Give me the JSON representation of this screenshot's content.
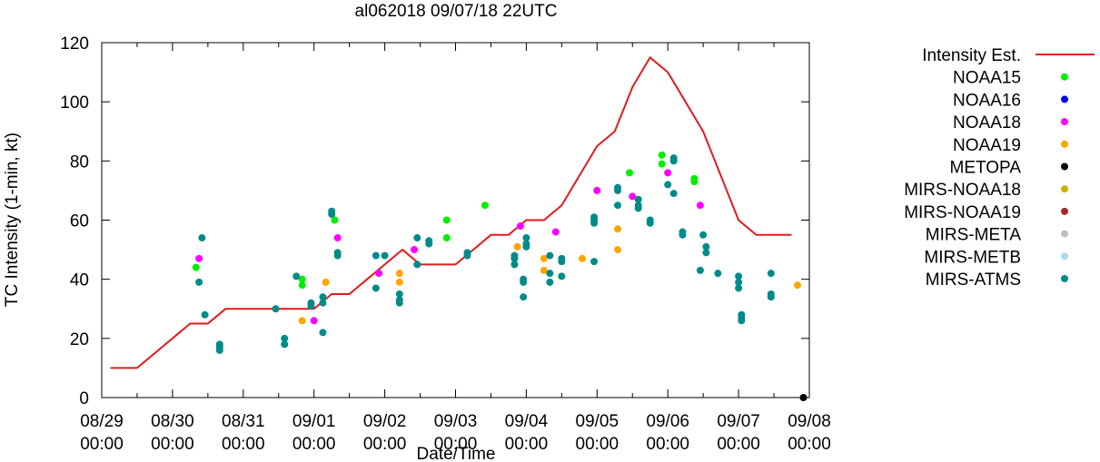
{
  "chart_data": {
    "type": "scatter",
    "title": "al062018 09/07/18 22UTC",
    "xlabel": "Date/Time",
    "ylabel": "TC Intensity (1-min, kt)",
    "xlim": [
      "08/29 00:00",
      "09/08 00:00"
    ],
    "ylim": [
      0,
      120
    ],
    "grid": false,
    "legend_position": "right, outside plot",
    "x_ticks": [
      {
        "date": "08/29",
        "time": "00:00"
      },
      {
        "date": "08/30",
        "time": "00:00"
      },
      {
        "date": "08/31",
        "time": "00:00"
      },
      {
        "date": "09/01",
        "time": "00:00"
      },
      {
        "date": "09/02",
        "time": "00:00"
      },
      {
        "date": "09/03",
        "time": "00:00"
      },
      {
        "date": "09/04",
        "time": "00:00"
      },
      {
        "date": "09/05",
        "time": "00:00"
      },
      {
        "date": "09/06",
        "time": "00:00"
      },
      {
        "date": "09/07",
        "time": "00:00"
      },
      {
        "date": "09/08",
        "time": "00:00"
      }
    ],
    "y_ticks": [
      0,
      20,
      40,
      60,
      80,
      100,
      120
    ],
    "series": [
      {
        "name": "Intensity Est.",
        "style": "line",
        "color": "#e31a1c",
        "points": [
          [
            "08/29 03:00",
            10
          ],
          [
            "08/29 12:00",
            10
          ],
          [
            "08/30 00:00",
            20
          ],
          [
            "08/30 06:00",
            25
          ],
          [
            "08/30 12:00",
            25
          ],
          [
            "08/30 18:00",
            30
          ],
          [
            "08/31 00:00",
            30
          ],
          [
            "08/31 12:00",
            30
          ],
          [
            "09/01 00:00",
            30
          ],
          [
            "09/01 06:00",
            35
          ],
          [
            "09/01 12:00",
            35
          ],
          [
            "09/01 18:00",
            40
          ],
          [
            "09/02 00:00",
            45
          ],
          [
            "09/02 06:00",
            50
          ],
          [
            "09/02 12:00",
            45
          ],
          [
            "09/02 18:00",
            45
          ],
          [
            "09/03 00:00",
            45
          ],
          [
            "09/03 06:00",
            50
          ],
          [
            "09/03 12:00",
            55
          ],
          [
            "09/03 18:00",
            55
          ],
          [
            "09/04 00:00",
            60
          ],
          [
            "09/04 06:00",
            60
          ],
          [
            "09/04 12:00",
            65
          ],
          [
            "09/04 18:00",
            75
          ],
          [
            "09/05 00:00",
            85
          ],
          [
            "09/05 06:00",
            90
          ],
          [
            "09/05 12:00",
            105
          ],
          [
            "09/05 18:00",
            115
          ],
          [
            "09/06 00:00",
            110
          ],
          [
            "09/06 06:00",
            100
          ],
          [
            "09/06 12:00",
            90
          ],
          [
            "09/06 18:00",
            75
          ],
          [
            "09/07 00:00",
            60
          ],
          [
            "09/07 06:00",
            55
          ],
          [
            "09/07 12:00",
            55
          ],
          [
            "09/07 18:00",
            55
          ]
        ]
      },
      {
        "name": "NOAA15",
        "style": "points",
        "color": "#00ee00",
        "points": [
          [
            "08/30 08:00",
            44
          ],
          [
            "08/31 20:00",
            40
          ],
          [
            "08/31 20:00",
            38
          ],
          [
            "09/01 07:00",
            60
          ],
          [
            "09/02 21:00",
            60
          ],
          [
            "09/02 21:00",
            54
          ],
          [
            "09/03 10:00",
            65
          ],
          [
            "09/05 11:00",
            76
          ],
          [
            "09/05 22:00",
            82
          ],
          [
            "09/05 22:00",
            79
          ],
          [
            "09/06 09:00",
            74
          ],
          [
            "09/06 09:00",
            73
          ]
        ]
      },
      {
        "name": "NOAA16",
        "style": "points",
        "color": "#0000ee",
        "points": []
      },
      {
        "name": "NOAA18",
        "style": "points",
        "color": "#ff00ff",
        "points": [
          [
            "08/30 09:00",
            47
          ],
          [
            "09/01 00:00",
            26
          ],
          [
            "09/01 08:00",
            54
          ],
          [
            "09/01 22:00",
            42
          ],
          [
            "09/02 10:00",
            50
          ],
          [
            "09/03 22:00",
            58
          ],
          [
            "09/04 10:00",
            56
          ],
          [
            "09/05 00:00",
            70
          ],
          [
            "09/05 12:00",
            68
          ],
          [
            "09/06 00:00",
            76
          ],
          [
            "09/06 11:00",
            65
          ]
        ]
      },
      {
        "name": "NOAA19",
        "style": "points",
        "color": "#ffa500",
        "points": [
          [
            "08/31 20:00",
            26
          ],
          [
            "09/01 04:00",
            39
          ],
          [
            "09/02 05:00",
            42
          ],
          [
            "09/02 05:00",
            39
          ],
          [
            "09/03 21:00",
            51
          ],
          [
            "09/04 06:00",
            47
          ],
          [
            "09/04 06:00",
            43
          ],
          [
            "09/04 19:00",
            47
          ],
          [
            "09/05 07:00",
            57
          ],
          [
            "09/05 07:00",
            50
          ],
          [
            "09/07 20:00",
            38
          ]
        ]
      },
      {
        "name": "METOPA",
        "style": "points",
        "color": "#000000",
        "points": [
          [
            "09/07 22:00",
            0
          ]
        ]
      },
      {
        "name": "MIRS-NOAA18",
        "style": "points",
        "color": "#c8b400",
        "points": []
      },
      {
        "name": "MIRS-NOAA19",
        "style": "points",
        "color": "#a52a2a",
        "points": []
      },
      {
        "name": "MIRS-META",
        "style": "points",
        "color": "#bebebe",
        "points": []
      },
      {
        "name": "MIRS-METB",
        "style": "points",
        "color": "#add8e6",
        "points": []
      },
      {
        "name": "MIRS-ATMS",
        "style": "points",
        "color": "#008b8b",
        "points": [
          [
            "08/30 09:00",
            39
          ],
          [
            "08/30 10:00",
            54
          ],
          [
            "08/30 11:00",
            28
          ],
          [
            "08/30 16:00",
            18
          ],
          [
            "08/30 16:00",
            17
          ],
          [
            "08/30 16:00",
            16
          ],
          [
            "08/31 11:00",
            30
          ],
          [
            "08/31 14:00",
            20
          ],
          [
            "08/31 14:00",
            18
          ],
          [
            "08/31 18:00",
            41
          ],
          [
            "08/31 23:00",
            32
          ],
          [
            "08/31 23:00",
            31
          ],
          [
            "09/01 03:00",
            22
          ],
          [
            "09/01 03:00",
            32
          ],
          [
            "09/01 03:00",
            34
          ],
          [
            "09/01 06:00",
            63
          ],
          [
            "09/01 06:00",
            62
          ],
          [
            "09/01 08:00",
            48
          ],
          [
            "09/01 08:00",
            49
          ],
          [
            "09/01 21:00",
            48
          ],
          [
            "09/01 21:00",
            37
          ],
          [
            "09/02 00:00",
            48
          ],
          [
            "09/02 05:00",
            35
          ],
          [
            "09/02 05:00",
            33
          ],
          [
            "09/02 05:00",
            32
          ],
          [
            "09/02 11:00",
            54
          ],
          [
            "09/02 11:00",
            45
          ],
          [
            "09/02 15:00",
            53
          ],
          [
            "09/02 15:00",
            52
          ],
          [
            "09/03 04:00",
            49
          ],
          [
            "09/03 04:00",
            48
          ],
          [
            "09/03 20:00",
            48
          ],
          [
            "09/03 20:00",
            47
          ],
          [
            "09/03 20:00",
            45
          ],
          [
            "09/03 23:00",
            40
          ],
          [
            "09/03 23:00",
            39
          ],
          [
            "09/03 23:00",
            34
          ],
          [
            "09/04 00:00",
            54
          ],
          [
            "09/04 00:00",
            52
          ],
          [
            "09/04 00:00",
            51
          ],
          [
            "09/04 08:00",
            48
          ],
          [
            "09/04 08:00",
            42
          ],
          [
            "09/04 08:00",
            39
          ],
          [
            "09/04 12:00",
            47
          ],
          [
            "09/04 12:00",
            46
          ],
          [
            "09/04 12:00",
            41
          ],
          [
            "09/04 23:00",
            61
          ],
          [
            "09/04 23:00",
            60
          ],
          [
            "09/04 23:00",
            59
          ],
          [
            "09/04 23:00",
            46
          ],
          [
            "09/05 07:00",
            71
          ],
          [
            "09/05 07:00",
            70
          ],
          [
            "09/05 07:00",
            65
          ],
          [
            "09/05 14:00",
            67
          ],
          [
            "09/05 14:00",
            65
          ],
          [
            "09/05 14:00",
            64
          ],
          [
            "09/05 18:00",
            60
          ],
          [
            "09/05 18:00",
            59
          ],
          [
            "09/06 00:00",
            72
          ],
          [
            "09/06 02:00",
            81
          ],
          [
            "09/06 02:00",
            80
          ],
          [
            "09/06 02:00",
            69
          ],
          [
            "09/06 05:00",
            56
          ],
          [
            "09/06 05:00",
            55
          ],
          [
            "09/06 12:00",
            55
          ],
          [
            "09/06 13:00",
            51
          ],
          [
            "09/06 13:00",
            49
          ],
          [
            "09/06 11:00",
            43
          ],
          [
            "09/06 17:00",
            42
          ],
          [
            "09/07 00:00",
            41
          ],
          [
            "09/07 00:00",
            39
          ],
          [
            "09/07 00:00",
            37
          ],
          [
            "09/07 01:00",
            28
          ],
          [
            "09/07 01:00",
            27
          ],
          [
            "09/07 01:00",
            26
          ],
          [
            "09/07 11:00",
            42
          ],
          [
            "09/07 11:00",
            35
          ],
          [
            "09/07 11:00",
            34
          ]
        ]
      }
    ]
  }
}
